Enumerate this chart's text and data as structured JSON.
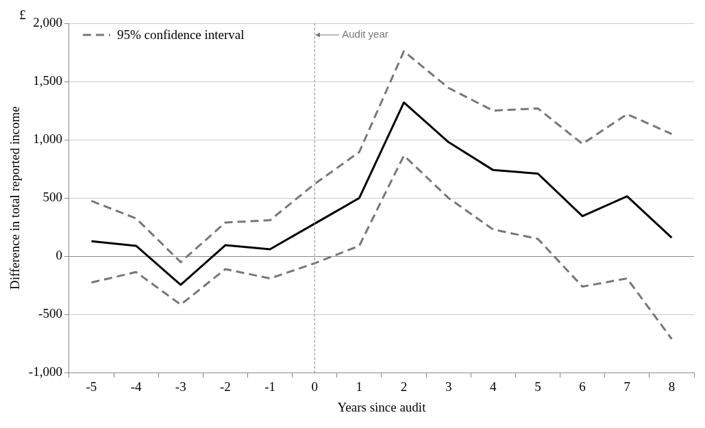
{
  "chart_data": {
    "type": "line",
    "xlabel": "Years since audit",
    "ylabel": "Difference in total reported income",
    "annotations": [
      "£"
    ],
    "categories": [
      "-5",
      "-4",
      "-3",
      "-2",
      "-1",
      "0",
      "1",
      "2",
      "3",
      "4",
      "5",
      "6",
      "7",
      "8"
    ],
    "series": [
      {
        "color": "#000000",
        "line_style": "solid",
        "values": [
          130,
          90,
          -245,
          95,
          60,
          280,
          500,
          1320,
          980,
          740,
          710,
          345,
          515,
          160
        ]
      },
      {
        "name": "95% confidence interval",
        "color": "#777777",
        "line_style": "dashed",
        "values": [
          475,
          325,
          -50,
          290,
          310,
          620,
          895,
          1760,
          1445,
          1250,
          1270,
          965,
          1220,
          1050
        ]
      },
      {
        "color": "#777777",
        "line_style": "dashed",
        "values": [
          -225,
          -135,
          -415,
          -110,
          -190,
          -60,
          90,
          865,
          500,
          230,
          150,
          -260,
          -190,
          -710
        ]
      }
    ],
    "ylim": [
      -1000,
      2000
    ],
    "yticks": [
      {
        "value": -1000,
        "label": "-1,000"
      },
      {
        "value": -500,
        "label": "-500"
      },
      {
        "value": 0,
        "label": "0"
      },
      {
        "value": 500,
        "label": "500"
      },
      {
        "value": 1000,
        "label": "1,000"
      },
      {
        "value": 1500,
        "label": "1,500"
      },
      {
        "value": 2000,
        "label": "2,000"
      }
    ],
    "ref_lines": [
      {
        "axis": "x",
        "value": "0",
        "label": "Audit year",
        "color": "#888888",
        "line_style": "dashed"
      }
    ],
    "grid": "y",
    "legend": "top left",
    "marker": "none"
  }
}
